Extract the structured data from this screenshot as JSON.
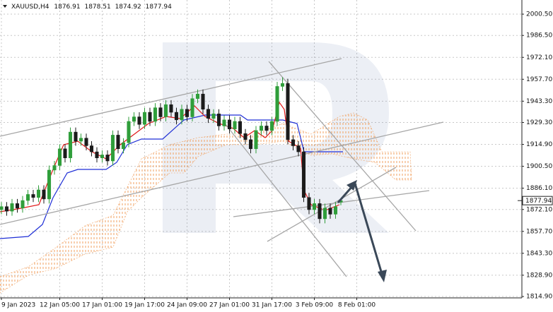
{
  "chart_data": {
    "type": "candlestick",
    "symbol": "XAUUSD,H4",
    "categories": [
      "9 Jan 2023",
      null,
      null,
      null,
      null,
      null,
      null,
      null,
      null,
      null,
      null,
      "12 Jan 05:00",
      null,
      null,
      null,
      null,
      null,
      null,
      null,
      "17 Jan 01:00",
      null,
      null,
      null,
      null,
      null,
      null,
      null,
      "19 Jan 17:00",
      null,
      null,
      null,
      null,
      null,
      null,
      null,
      "24 Jan 09:00",
      null,
      null,
      null,
      null,
      null,
      null,
      null,
      "27 Jan 01:00",
      null,
      null,
      null,
      null,
      null,
      null,
      null,
      "31 Jan 17:00",
      null,
      null,
      null,
      null,
      null,
      null,
      null,
      "3 Feb 09:00",
      null,
      null,
      null,
      null,
      null,
      null,
      null,
      "8 Feb 01:00"
    ],
    "open": [
      1872,
      1874,
      1871,
      1876,
      1873,
      1878,
      1882,
      1880,
      1885,
      1879,
      1898,
      1901,
      1912,
      1906,
      1923,
      1917,
      1919,
      1914,
      1910,
      1906,
      1908,
      1904,
      1921,
      1912,
      1916,
      1930,
      1933,
      1928,
      1936,
      1930,
      1939,
      1933,
      1941,
      1936,
      1931,
      1938,
      1933,
      1945,
      1948,
      1938,
      1932,
      1935,
      1927,
      1931,
      1925,
      1930,
      1922,
      1918,
      1912,
      1924,
      1927,
      1924,
      1930,
      1953,
      1955,
      1918,
      1914,
      1910,
      1880,
      1872,
      1876,
      1866,
      1873,
      1869,
      1876.91,
      null,
      null,
      null
    ],
    "high": [
      1877,
      1877,
      1879,
      1879,
      1881,
      1885,
      1885,
      1888,
      1888,
      1901,
      1904,
      1915,
      1915,
      1926,
      1926,
      1922,
      1922,
      1917,
      1913,
      1911,
      1911,
      1924,
      1924,
      1919,
      1933,
      1936,
      1936,
      1939,
      1939,
      1942,
      1942,
      1944,
      1944,
      1939,
      1941,
      1941,
      1948,
      1951,
      1951,
      1941,
      1938,
      1938,
      1934,
      1934,
      1933,
      1933,
      1925,
      1921,
      1927,
      1930,
      1930,
      1933,
      1956,
      1959,
      1958,
      1921,
      1917,
      1913,
      1883,
      1879,
      1879,
      1876,
      1876,
      1877,
      1878.51,
      null,
      null,
      null
    ],
    "low": [
      1869,
      1868,
      1868,
      1870,
      1870,
      1875,
      1877,
      1877,
      1876,
      1876,
      1895,
      1898,
      1903,
      1903,
      1914,
      1914,
      1911,
      1907,
      1903,
      1903,
      1901,
      1901,
      1909,
      1909,
      1913,
      1927,
      1925,
      1925,
      1927,
      1927,
      1930,
      1930,
      1933,
      1928,
      1928,
      1930,
      1930,
      1942,
      1935,
      1929,
      1929,
      1924,
      1924,
      1922,
      1922,
      1919,
      1915,
      1909,
      1909,
      1921,
      1921,
      1921,
      1927,
      1950,
      1915,
      1911,
      1907,
      1877,
      1869,
      1869,
      1863,
      1863,
      1866,
      1866,
      1874.92,
      null,
      null,
      null
    ],
    "close": [
      1874,
      1871,
      1876,
      1873,
      1878,
      1882,
      1880,
      1885,
      1879,
      1898,
      1901,
      1912,
      1906,
      1923,
      1917,
      1919,
      1914,
      1910,
      1906,
      1908,
      1904,
      1921,
      1912,
      1916,
      1930,
      1933,
      1928,
      1936,
      1930,
      1939,
      1933,
      1941,
      1936,
      1931,
      1938,
      1933,
      1945,
      1948,
      1938,
      1932,
      1935,
      1927,
      1931,
      1925,
      1930,
      1922,
      1918,
      1912,
      1924,
      1927,
      1924,
      1930,
      1953,
      1955,
      1918,
      1914,
      1910,
      1880,
      1872,
      1876,
      1866,
      1873,
      1869,
      1874,
      1877.94,
      null,
      null,
      null
    ],
    "up_color": "#2f9e3a",
    "down_color": "#1b1b1b",
    "ylim": [
      1814.0,
      2009.8
    ],
    "yticks": [
      {
        "value": 2000.5,
        "label": "2000.50"
      },
      {
        "value": 1986.5,
        "label": "1986.50"
      },
      {
        "value": 1972.1,
        "label": "1972.10"
      },
      {
        "value": 1957.7,
        "label": "1957.70"
      },
      {
        "value": 1943.3,
        "label": "1943.30"
      },
      {
        "value": 1929.3,
        "label": "1929.30"
      },
      {
        "value": 1914.9,
        "label": "1914.90"
      },
      {
        "value": 1900.5,
        "label": "1900.50"
      },
      {
        "value": 1886.1,
        "label": "1886.10"
      },
      {
        "value": 1872.1,
        "label": "1872.10"
      },
      {
        "value": 1857.7,
        "label": "1857.70"
      },
      {
        "value": 1843.3,
        "label": "1843.30"
      },
      {
        "value": 1828.9,
        "label": "1828.90"
      },
      {
        "value": 1814.9,
        "label": "1814.90"
      }
    ],
    "grid": true
  }
}
